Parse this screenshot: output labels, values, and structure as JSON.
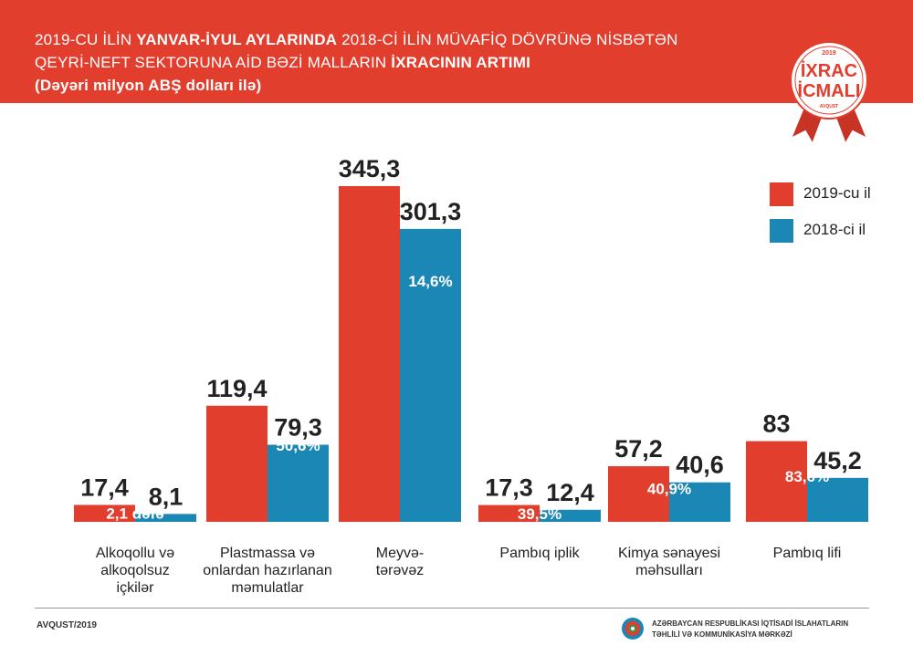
{
  "header": {
    "line1_part1": "2019-CU İLİN ",
    "line1_bold": "YANVAR-İYUL AYLARINDA",
    "line1_part2": "  2018-Cİ İLİN MÜVAFİQ DÖVRÜNƏ NİSBƏTƏN",
    "line2_part1": "QEYRİ-NEFT SEKTORUNA AİD BƏZİ MALLARIN ",
    "line2_bold": "İXRACININ ARTIMI",
    "line3": "(Dəyəri milyon ABŞ dolları ilə)"
  },
  "badge": {
    "year": "2019",
    "word1": "İXRAC",
    "word2": "İCMALI",
    "month": "AVQUST"
  },
  "legend": [
    {
      "label": "2019-cu il",
      "color": "#e23e2e"
    },
    {
      "label": "2018-ci il",
      "color": "#1a87b5"
    }
  ],
  "footer": {
    "date": "AVQUST/2019",
    "org_line1": "AZƏRBAYCAN RESPUBLİKASI İQTİSADİ İSLAHATLARIN",
    "org_line2": "TƏHLİLİ VƏ KOMMUNİKASİYA MƏRKƏZİ"
  },
  "chart_data": {
    "type": "bar",
    "categories": [
      [
        "Alkoqollu və",
        "alkoqolsuz",
        "içkilər"
      ],
      [
        "Plastmassa və",
        "onlardan hazırlanan",
        "məmulatlar"
      ],
      [
        "Meyvə-",
        "tərəvəz"
      ],
      [
        "Pambıq iplik"
      ],
      [
        "Kimya sənayesi",
        "məhsulları"
      ],
      [
        "Pambıq lifi"
      ]
    ],
    "series": [
      {
        "name": "2019-cu il",
        "color": "#e23e2e",
        "values": [
          17.4,
          119.4,
          345.3,
          17.3,
          57.2,
          83
        ],
        "labels": [
          "17,4",
          "119,4",
          "345,3",
          "17,3",
          "57,2",
          "83"
        ]
      },
      {
        "name": "2018-ci il",
        "color": "#1a87b5",
        "values": [
          8.1,
          79.3,
          301.3,
          12.4,
          40.6,
          45.2
        ],
        "labels": [
          "8,1",
          "79,3",
          "301,3",
          "12,4",
          "40,6",
          "45,2"
        ]
      }
    ],
    "growth_labels": [
      "2,1 dəfə",
      "50,6%",
      "14,6%",
      "39,5%",
      "40,9%",
      "83,6%"
    ],
    "ylim": [
      0,
      345.3
    ],
    "grid": false,
    "legend_position": "top-right"
  }
}
